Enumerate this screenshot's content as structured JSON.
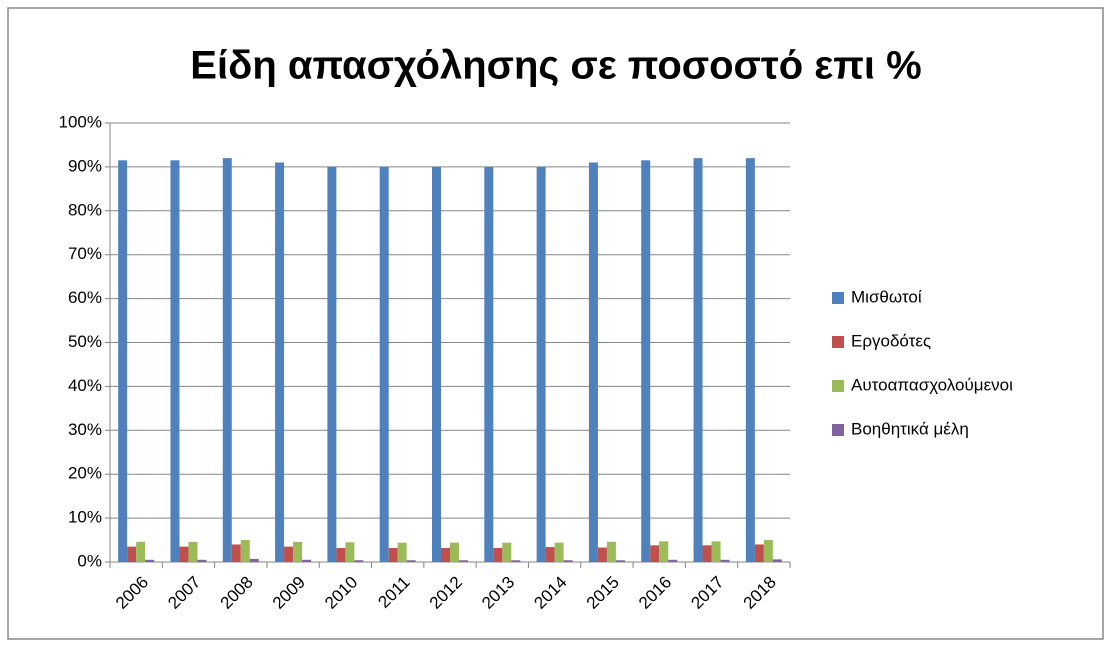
{
  "chart_data": {
    "type": "bar",
    "title": "Είδη απασχόλησης σε ποσοστό επι %",
    "categories": [
      "2006",
      "2007",
      "2008",
      "2009",
      "2010",
      "2011",
      "2012",
      "2013",
      "2014",
      "2015",
      "2016",
      "2017",
      "2018"
    ],
    "series": [
      {
        "name": "Μισθωτοί",
        "color": "#4f81bd",
        "values": [
          91.5,
          91.5,
          92,
          91,
          90,
          90,
          90,
          90,
          90,
          91,
          91.5,
          92,
          92
        ]
      },
      {
        "name": "Εργοδότες",
        "color": "#c0504d",
        "values": [
          3.5,
          3.5,
          4,
          3.5,
          3.2,
          3.2,
          3.2,
          3.2,
          3.4,
          3.3,
          3.8,
          3.8,
          4
        ]
      },
      {
        "name": "Αυτοαπασχολούμενοι",
        "color": "#9bbb59",
        "values": [
          4.6,
          4.6,
          5,
          4.6,
          4.5,
          4.4,
          4.4,
          4.4,
          4.4,
          4.6,
          4.7,
          4.7,
          5
        ]
      },
      {
        "name": "Βοηθητικά μέλη",
        "color": "#8064a2",
        "values": [
          0.5,
          0.5,
          0.7,
          0.5,
          0.4,
          0.4,
          0.4,
          0.4,
          0.4,
          0.4,
          0.5,
          0.5,
          0.6
        ]
      }
    ],
    "ylim": [
      0,
      100
    ],
    "yticks": [
      {
        "value": 0,
        "label": "0%"
      },
      {
        "value": 10,
        "label": "10%"
      },
      {
        "value": 20,
        "label": "20%"
      },
      {
        "value": 30,
        "label": "30%"
      },
      {
        "value": 40,
        "label": "40%"
      },
      {
        "value": 50,
        "label": "50%"
      },
      {
        "value": 60,
        "label": "60%"
      },
      {
        "value": 70,
        "label": "70%"
      },
      {
        "value": 80,
        "label": "80%"
      },
      {
        "value": 90,
        "label": "90%"
      },
      {
        "value": 100,
        "label": "100%"
      }
    ],
    "grid": true,
    "legend": "right"
  }
}
